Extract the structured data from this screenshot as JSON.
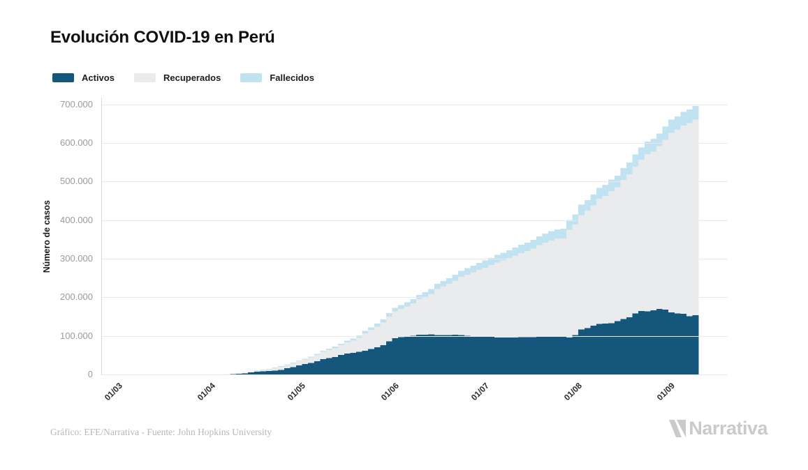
{
  "title": "Evolución COVID-19 en Perú",
  "footer": {
    "credit": "Gráfico: EFE/Narrativa - Fuente: John Hopkins University",
    "brand": "Narrativa"
  },
  "chart_data": {
    "type": "bar",
    "stacked": true,
    "title": "Evolución COVID-19 en Perú",
    "ylabel": "Número de casos",
    "xlabel": "",
    "grid": true,
    "legend_position": "top-left",
    "ylim": [
      0,
      719000
    ],
    "y_ticks": [
      {
        "label": "0",
        "value": 0
      },
      {
        "label": "100.000",
        "value": 100000
      },
      {
        "label": "200.000",
        "value": 200000
      },
      {
        "label": "300.000",
        "value": 300000
      },
      {
        "label": "400.000",
        "value": 400000
      },
      {
        "label": "500.000",
        "value": 500000
      },
      {
        "label": "600.000",
        "value": 600000
      },
      {
        "label": "700.000",
        "value": 700000
      }
    ],
    "x_ticks": [
      {
        "label": "01/03",
        "day": 0
      },
      {
        "label": "01/04",
        "day": 31
      },
      {
        "label": "01/05",
        "day": 61
      },
      {
        "label": "01/06",
        "day": 92
      },
      {
        "label": "01/07",
        "day": 122
      },
      {
        "label": "01/08",
        "day": 153
      },
      {
        "label": "01/09",
        "day": 184
      }
    ],
    "x": [
      "01/03",
      "03/03",
      "05/03",
      "07/03",
      "09/03",
      "11/03",
      "13/03",
      "15/03",
      "17/03",
      "19/03",
      "21/03",
      "23/03",
      "25/03",
      "27/03",
      "29/03",
      "31/03",
      "02/04",
      "04/04",
      "06/04",
      "08/04",
      "10/04",
      "12/04",
      "14/04",
      "16/04",
      "18/04",
      "20/04",
      "22/04",
      "24/04",
      "26/04",
      "28/04",
      "30/04",
      "02/05",
      "04/05",
      "06/05",
      "08/05",
      "10/05",
      "12/05",
      "14/05",
      "16/05",
      "18/05",
      "20/05",
      "22/05",
      "24/05",
      "26/05",
      "28/05",
      "30/05",
      "01/06",
      "03/06",
      "05/06",
      "07/06",
      "09/06",
      "11/06",
      "13/06",
      "15/06",
      "17/06",
      "19/06",
      "21/06",
      "23/06",
      "25/06",
      "27/06",
      "29/06",
      "01/07",
      "03/07",
      "05/07",
      "07/07",
      "09/07",
      "11/07",
      "13/07",
      "15/07",
      "17/07",
      "19/07",
      "21/07",
      "23/07",
      "25/07",
      "27/07",
      "29/07",
      "31/07",
      "02/08",
      "04/08",
      "06/08",
      "08/08",
      "10/08",
      "12/08",
      "14/08",
      "16/08",
      "18/08",
      "20/08",
      "22/08",
      "24/08",
      "26/08",
      "28/08",
      "30/08",
      "01/09",
      "03/09",
      "05/09",
      "07/09",
      "09/09"
    ],
    "series": [
      {
        "name": "Activos",
        "color": "#15567c",
        "values": [
          1,
          2,
          5,
          11,
          14,
          16,
          35,
          60,
          110,
          220,
          300,
          370,
          450,
          580,
          750,
          950,
          1350,
          1800,
          2200,
          2750,
          3800,
          4900,
          7100,
          8600,
          9800,
          10800,
          11700,
          14000,
          18000,
          21000,
          25500,
          28500,
          31500,
          36000,
          41100,
          44000,
          47000,
          52000,
          56000,
          57500,
          60500,
          63600,
          68000,
          72000,
          77500,
          88000,
          96000,
          98500,
          100000,
          102500,
          104500,
          105000,
          105500,
          103600,
          104000,
          104000,
          104500,
          103500,
          102500,
          101500,
          101000,
          100400,
          99000,
          98000,
          97500,
          97500,
          98000,
          98200,
          98400,
          98700,
          99000,
          99500,
          99800,
          100000,
          100000,
          98000,
          104000,
          118000,
          122000,
          128000,
          133000,
          134000,
          135000,
          140000,
          145000,
          150000,
          160000,
          166600,
          165000,
          168000,
          172000,
          170000,
          163000,
          160000,
          159000,
          153000,
          155000
        ]
      },
      {
        "name": "Recuperados",
        "color": "#eaebec",
        "values": [
          0,
          0,
          0,
          0,
          1,
          1,
          3,
          5,
          6,
          10,
          12,
          15,
          21,
          35,
          84,
          100,
          150,
          300,
          450,
          650,
          900,
          1300,
          1800,
          3200,
          4000,
          5000,
          7000,
          8000,
          8800,
          9700,
          11100,
          12500,
          14400,
          16300,
          19000,
          21350,
          23000,
          25300,
          28600,
          32000,
          36500,
          44850,
          49000,
          54000,
          59000,
          63600,
          69260,
          72800,
          78200,
          83700,
          92000,
          98000,
          105000,
          119400,
          126400,
          132900,
          140300,
          151000,
          158000,
          165000,
          171860,
          178245,
          186000,
          194100,
          199700,
          205900,
          212000,
          218250,
          223260,
          229100,
          237500,
          243400,
          249200,
          253000,
          254000,
          278400,
          286000,
          297000,
          304000,
          312000,
          324000,
          330000,
          342000,
          347000,
          361000,
          370000,
          380000,
          391200,
          408000,
          411400,
          421000,
          440000,
          465000,
          476000,
          488100,
          500000,
          507000
        ]
      },
      {
        "name": "Fallecidos",
        "color": "#c1e2f0",
        "values": [
          0,
          0,
          0,
          0,
          0,
          0,
          0,
          0,
          1,
          3,
          6,
          9,
          12,
          16,
          24,
          40,
          70,
          100,
          140,
          190,
          240,
          300,
          380,
          480,
          600,
          750,
          900,
          1050,
          1200,
          1400,
          1650,
          1900,
          2200,
          2500,
          2900,
          3300,
          3700,
          4100,
          4600,
          5200,
          5800,
          6400,
          7000,
          7600,
          8200,
          8800,
          9400,
          9900,
          10400,
          11000,
          11600,
          12100,
          12700,
          13300,
          13900,
          14500,
          15200,
          15800,
          16400,
          17000,
          17600,
          18100,
          18700,
          19200,
          19700,
          20200,
          20800,
          21300,
          21800,
          22300,
          22900,
          23400,
          24000,
          24600,
          25100,
          25700,
          26300,
          26900,
          27400,
          27900,
          28400,
          28800,
          29300,
          29800,
          30400,
          30900,
          31400,
          31900,
          32400,
          32900,
          33400,
          33900,
          34300,
          34600,
          34900,
          35200,
          35500
        ]
      }
    ]
  }
}
